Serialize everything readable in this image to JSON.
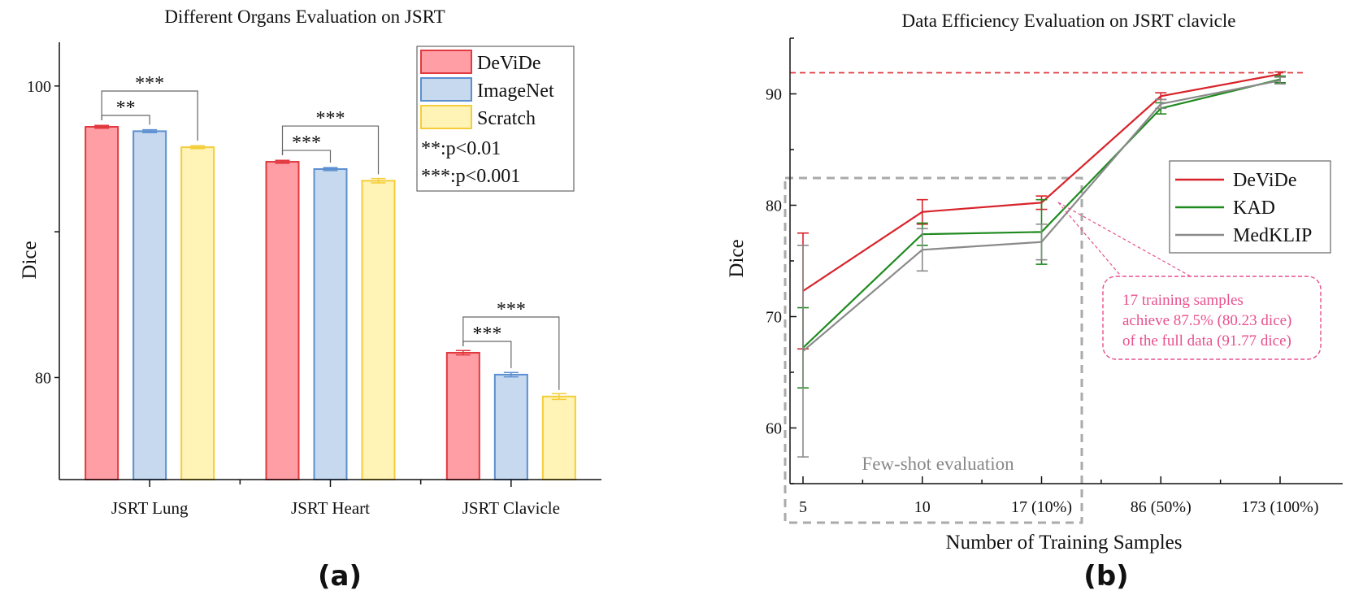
{
  "chart_data": [
    {
      "type": "bar",
      "panel_label": "(a)",
      "title": "Different Organs Evaluation on JSRT",
      "xlabel": "",
      "ylabel": "Dice",
      "ylim": [
        73,
        103
      ],
      "yticks": [
        80,
        100
      ],
      "categories": [
        "JSRT Lung",
        "JSRT Heart",
        "JSRT Clavicle"
      ],
      "series": [
        {
          "name": "DeViDe",
          "values": [
            97.2,
            94.8,
            81.7
          ],
          "errors": [
            0.1,
            0.1,
            0.15
          ],
          "color": "#ff9fa5",
          "edge": "#e0393f"
        },
        {
          "name": "ImageNet",
          "values": [
            96.9,
            94.3,
            80.2
          ],
          "errors": [
            0.1,
            0.1,
            0.15
          ],
          "color": "#c7d9ee",
          "edge": "#5b8fd0"
        },
        {
          "name": "Scratch",
          "values": [
            95.8,
            93.5,
            78.7
          ],
          "errors": [
            0.1,
            0.15,
            0.2
          ],
          "color": "#fff3b5",
          "edge": "#f4cd39"
        }
      ],
      "significance": [
        {
          "category": "JSRT Lung",
          "pair": [
            "DeViDe",
            "ImageNet"
          ],
          "label": "**"
        },
        {
          "category": "JSRT Lung",
          "pair": [
            "DeViDe",
            "Scratch"
          ],
          "label": "***"
        },
        {
          "category": "JSRT Heart",
          "pair": [
            "DeViDe",
            "ImageNet"
          ],
          "label": "***"
        },
        {
          "category": "JSRT Heart",
          "pair": [
            "DeViDe",
            "Scratch"
          ],
          "label": "***"
        },
        {
          "category": "JSRT Clavicle",
          "pair": [
            "DeViDe",
            "ImageNet"
          ],
          "label": "***"
        },
        {
          "category": "JSRT Clavicle",
          "pair": [
            "DeViDe",
            "Scratch"
          ],
          "label": "***"
        }
      ],
      "legend": {
        "position": "top-right",
        "notes": [
          "**:p<0.01",
          "***:p<0.001"
        ]
      }
    },
    {
      "type": "line",
      "panel_label": "(b)",
      "title": "Data Efficiency Evaluation on JSRT clavicle",
      "xlabel": "Number of Training Samples",
      "ylabel": "Dice",
      "ylim": [
        55,
        95
      ],
      "yticks": [
        60,
        70,
        80,
        90
      ],
      "x": [
        "5",
        "10",
        "17 (10%)",
        "86 (50%)",
        "173 (100%)"
      ],
      "series": [
        {
          "name": "DeViDe",
          "values": [
            72.3,
            79.4,
            80.23,
            89.8,
            91.77
          ],
          "errors": [
            5.2,
            1.1,
            0.6,
            0.3,
            0.2
          ],
          "color": "#d8232a"
        },
        {
          "name": "KAD",
          "values": [
            67.2,
            77.4,
            77.6,
            88.7,
            91.3
          ],
          "errors": [
            3.6,
            1.0,
            2.9,
            0.5,
            0.3
          ],
          "color": "#1f8a1f"
        },
        {
          "name": "MedKLIP",
          "values": [
            66.9,
            76.0,
            76.7,
            89.1,
            91.2
          ],
          "errors": [
            9.5,
            1.9,
            1.6,
            0.4,
            0.3
          ],
          "color": "#8a8a8a"
        }
      ],
      "reference_line": {
        "value": 91.9,
        "color": "#e0393f"
      },
      "legend": {
        "position": "center-right"
      },
      "annotations": {
        "region_label": "Few-shot evaluation",
        "callout": [
          "17 training samples",
          "achieve 87.5% (80.23 dice)",
          "of the full data (91.77 dice)"
        ],
        "callout_color": "#e8508e"
      }
    }
  ]
}
